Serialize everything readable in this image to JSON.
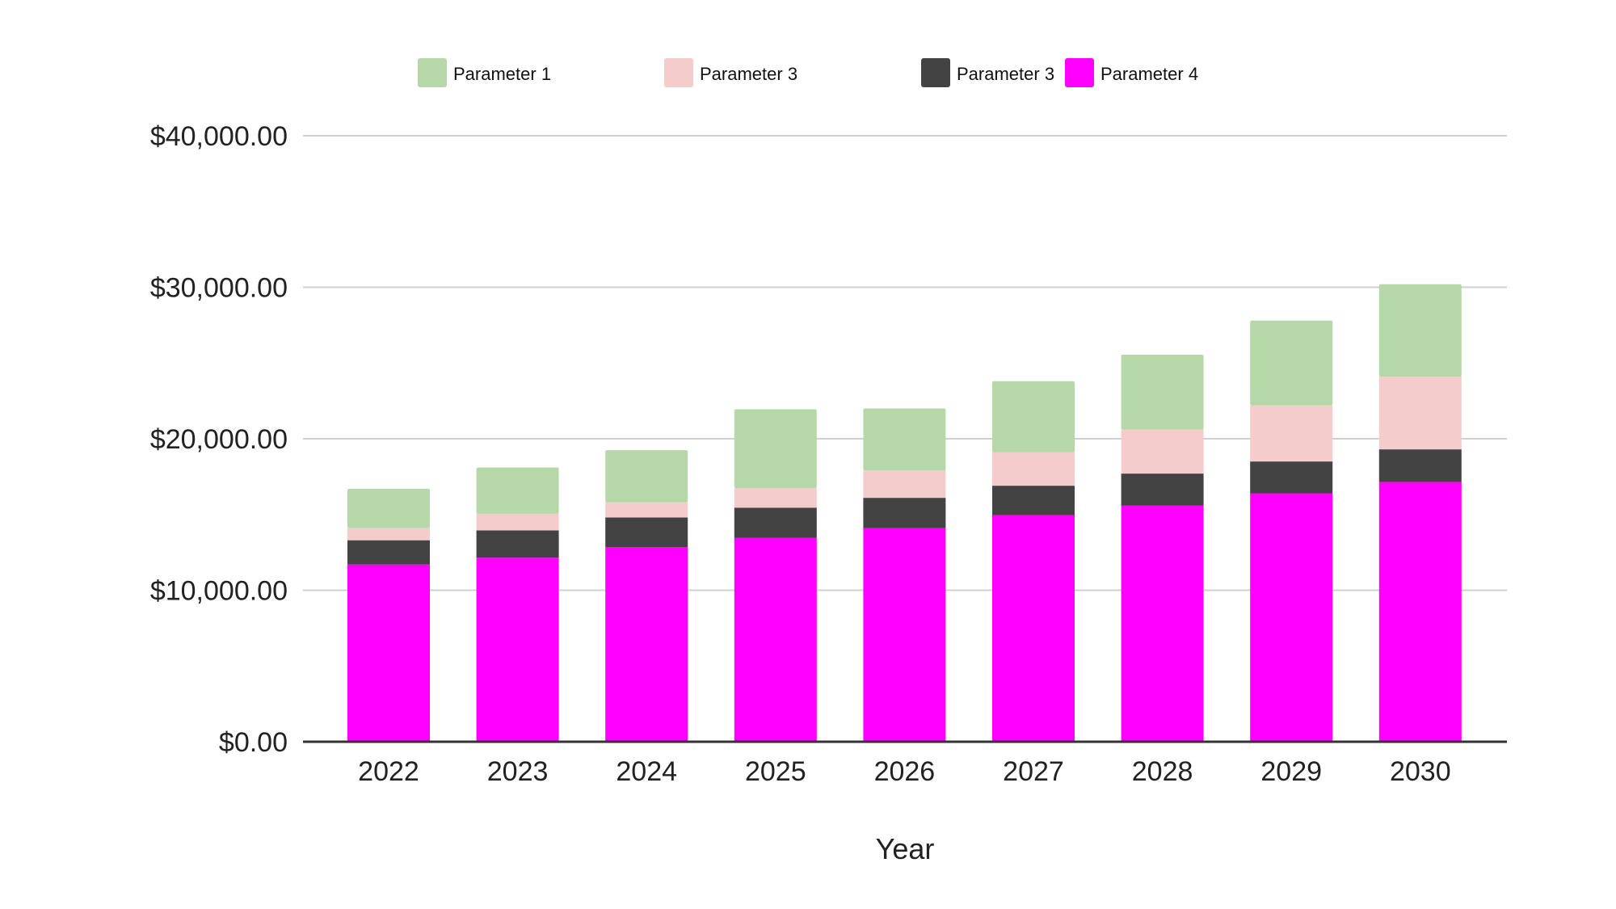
{
  "chart_data": {
    "type": "bar",
    "stacked": true,
    "title": "",
    "xlabel": "Year",
    "ylabel": "",
    "categories": [
      "2022",
      "2023",
      "2024",
      "2025",
      "2026",
      "2027",
      "2028",
      "2029",
      "2030"
    ],
    "ylim": [
      0,
      40000
    ],
    "yticks": [
      0,
      10000,
      20000,
      30000,
      40000
    ],
    "ytick_labels": [
      "$0.00",
      "$10,000.00",
      "$20,000.00",
      "$30,000.00",
      "$40,000.00"
    ],
    "grid": true,
    "legend_position": "top",
    "series": [
      {
        "name": "Parameter 4",
        "color": "#ff00ff",
        "values": [
          11700,
          12150,
          12850,
          13450,
          14100,
          14950,
          15600,
          16400,
          17150
        ]
      },
      {
        "name": "Parameter 3",
        "color": "#434343",
        "values": [
          1600,
          1800,
          1950,
          2000,
          2000,
          1950,
          2100,
          2100,
          2150
        ]
      },
      {
        "name": "Parameter 3",
        "color": "#f4cccc",
        "values": [
          800,
          1100,
          1000,
          1300,
          1800,
          2200,
          2900,
          3700,
          4800
        ]
      },
      {
        "name": "Parameter 1",
        "color": "#b6d7a8",
        "values": [
          2600,
          3050,
          3450,
          5200,
          4100,
          4700,
          4950,
          5600,
          6100
        ]
      }
    ],
    "legend_order": [
      3,
      2,
      1,
      0
    ]
  }
}
